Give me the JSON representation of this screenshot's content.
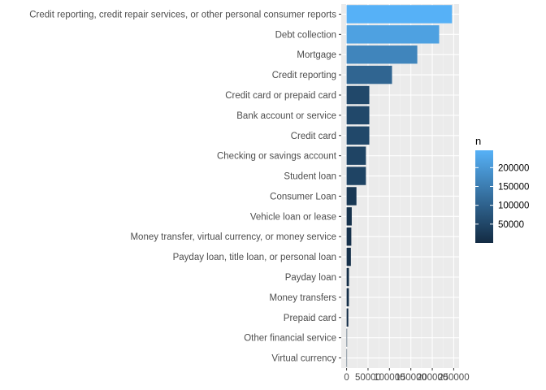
{
  "chart_data": {
    "type": "bar",
    "orientation": "horizontal",
    "categories": [
      "Credit reporting, credit repair services, or other personal consumer reports",
      "Debt collection",
      "Mortgage",
      "Credit reporting",
      "Credit card or prepaid card",
      "Bank account or service",
      "Credit card",
      "Checking or savings account",
      "Student loan",
      "Consumer Loan",
      "Vehicle loan or lease",
      "Money transfer, virtual currency, or money service",
      "Payday loan, title loan, or personal loan",
      "Payday loan",
      "Money transfers",
      "Prepaid card",
      "Other financial service",
      "Virtual currency"
    ],
    "values": [
      246000,
      216000,
      165000,
      106000,
      53000,
      53000,
      53000,
      45000,
      45000,
      23000,
      12000,
      11000,
      10000,
      5500,
      5300,
      4000,
      1100,
      20
    ],
    "xlim": [
      0,
      250000
    ],
    "x_ticks": [
      0,
      50000,
      100000,
      150000,
      200000,
      250000
    ],
    "x_tick_labels": [
      "0",
      "50000",
      "100000",
      "150000",
      "200000",
      "250000"
    ],
    "grid": true,
    "background": "#ebebeb",
    "legend": {
      "title": "n",
      "position": "right",
      "type": "colorbar",
      "ticks": [
        50000,
        100000,
        150000,
        200000
      ],
      "tick_labels": [
        "50000",
        "100000",
        "150000",
        "200000"
      ],
      "range": [
        20,
        246000
      ],
      "color_low": "#132b43",
      "color_high": "#56b1f7"
    }
  }
}
